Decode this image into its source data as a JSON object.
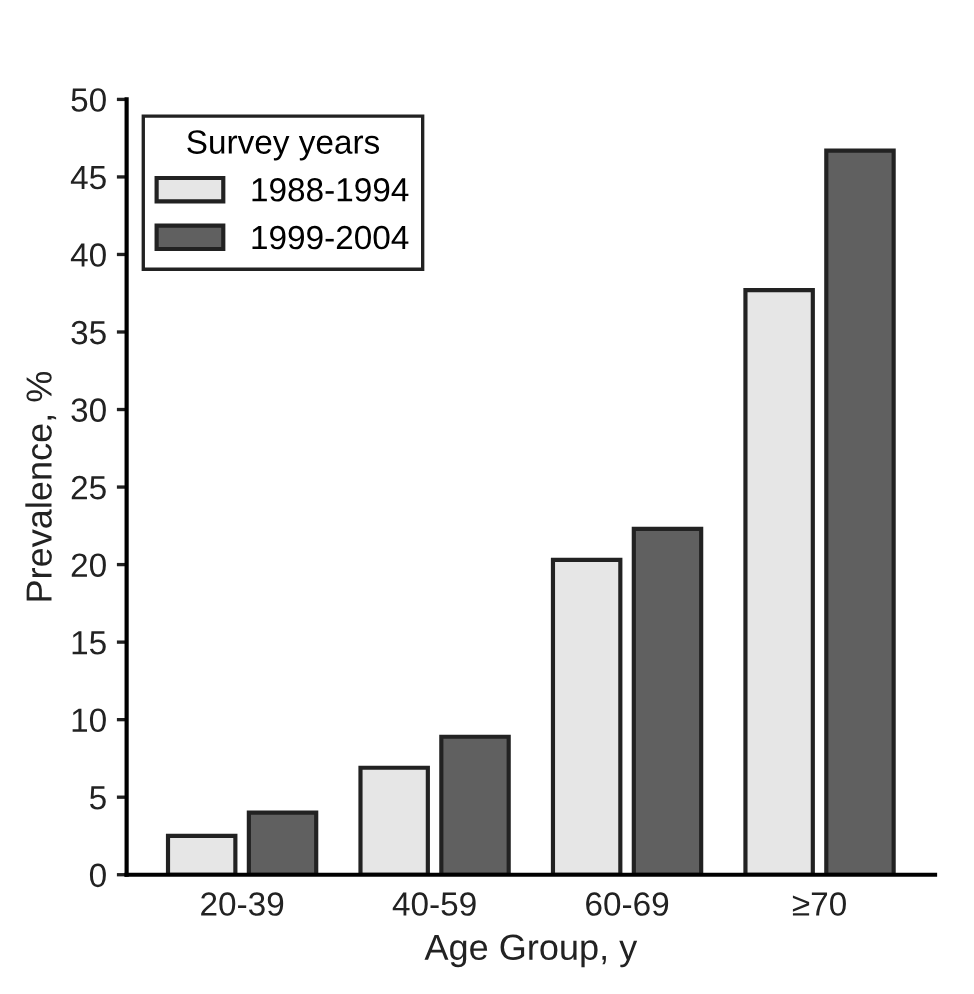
{
  "chart_data": {
    "type": "bar",
    "xlabel": "Age Group, y",
    "ylabel": "Prevalence, %",
    "legend_title": "Survey years",
    "categories": [
      "20-39",
      "40-59",
      "60-69",
      "≥70"
    ],
    "series": [
      {
        "name": "1988-1994",
        "color": "#e6e6e6",
        "values": [
          2.5,
          6.9,
          20.3,
          37.7
        ]
      },
      {
        "name": "1999-2004",
        "color": "#606060",
        "values": [
          4.0,
          8.9,
          22.3,
          46.7
        ]
      }
    ],
    "ylim": [
      0,
      50
    ],
    "yticks": [
      0,
      5,
      10,
      15,
      20,
      25,
      30,
      35,
      40,
      45,
      50
    ],
    "grid": false,
    "legend": "top left"
  }
}
